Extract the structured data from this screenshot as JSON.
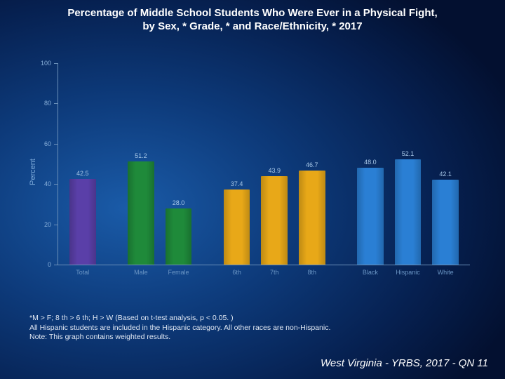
{
  "title_line1": "Percentage of Middle School Students Who Were Ever in a Physical Fight,",
  "title_line2": "by Sex, * Grade, * and Race/Ethnicity, * 2017",
  "chart": {
    "type": "bar",
    "ylabel": "Percent",
    "ylim_max": 100,
    "ytick_step": 20,
    "yticks": [
      0,
      20,
      40,
      60,
      80,
      100
    ],
    "groups": [
      {
        "label": "Total",
        "value": 42.5,
        "color": "#5a3fa8"
      },
      {
        "gap": true
      },
      {
        "label": "Male",
        "value": 51.2,
        "color": "#1f8a3a"
      },
      {
        "label": "Female",
        "value": 28.0,
        "color": "#1f8a3a"
      },
      {
        "gap": true
      },
      {
        "label": "6th",
        "value": 37.4,
        "color": "#e8a818"
      },
      {
        "label": "7th",
        "value": 43.9,
        "color": "#e8a818"
      },
      {
        "label": "8th",
        "value": 46.7,
        "color": "#e8a818"
      },
      {
        "gap": true
      },
      {
        "label": "Black",
        "value": 48.0,
        "color": "#2a7fd4"
      },
      {
        "label": "Hispanic",
        "value": 52.1,
        "color": "#2a7fd4"
      },
      {
        "label": "White",
        "value": 42.1,
        "color": "#2a7fd4"
      }
    ],
    "bar_shade_darken": 0.18,
    "background": "transparent",
    "axis_color": "#6a8fb8",
    "tick_label_color": "#88b0da",
    "value_label_color": "#a8c8e8"
  },
  "footnote_line1": "*M > F; 8 th > 6 th; H > W (Based on t-test analysis, p < 0.05. )",
  "footnote_line2": "All Hispanic students are included in the Hispanic category.  All other races are non-Hispanic.",
  "footnote_line3": "Note: This graph contains weighted results.",
  "source": "West Virginia - YRBS, 2017 - QN 11"
}
